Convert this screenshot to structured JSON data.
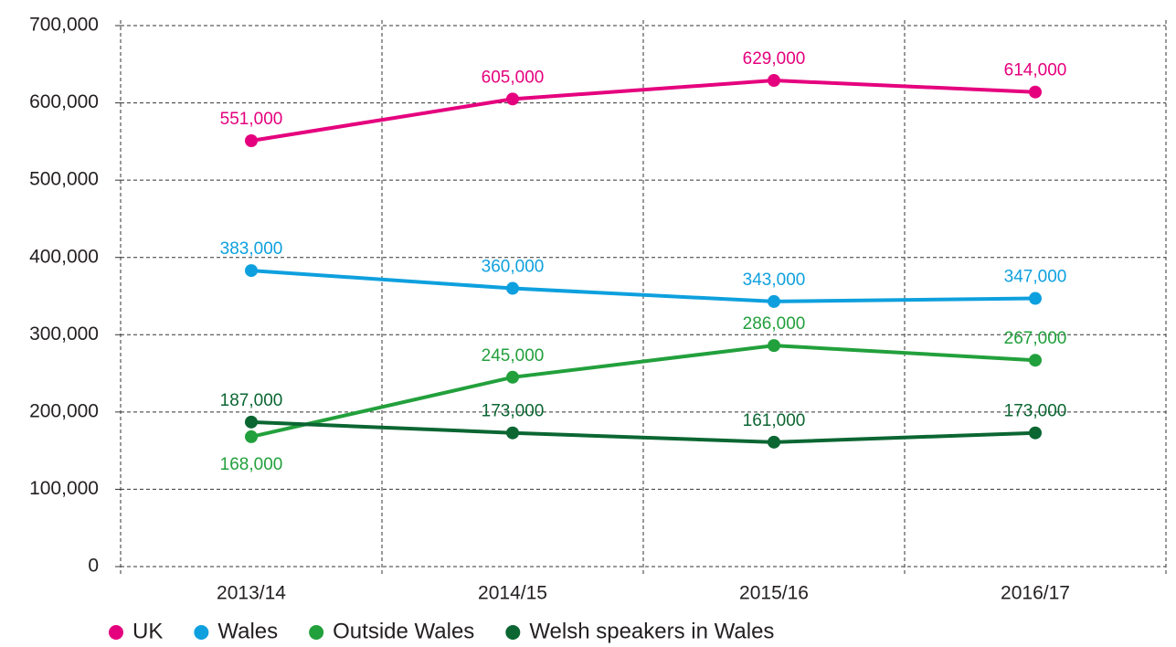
{
  "chart_data": {
    "type": "line",
    "categories": [
      "2013/14",
      "2014/15",
      "2015/16",
      "2016/17"
    ],
    "series": [
      {
        "name": "UK",
        "color": "#e5007e",
        "values": [
          551000,
          605000,
          629000,
          614000
        ],
        "value_labels": [
          "551,000",
          "605,000",
          "629,000",
          "614,000"
        ]
      },
      {
        "name": "Wales",
        "color": "#0ea0de",
        "values": [
          383000,
          360000,
          343000,
          347000
        ],
        "value_labels": [
          "383,000",
          "360,000",
          "343,000",
          "347,000"
        ]
      },
      {
        "name": "Outside Wales",
        "color": "#22a03c",
        "values": [
          168000,
          245000,
          286000,
          267000
        ],
        "value_labels": [
          "168,000",
          "245,000",
          "286,000",
          "267,000"
        ]
      },
      {
        "name": "Welsh speakers in Wales",
        "color": "#0b6632",
        "values": [
          187000,
          173000,
          161000,
          173000
        ],
        "value_labels": [
          "187,000",
          "173,000",
          "161,000",
          "173,000"
        ]
      }
    ],
    "ylim": [
      0,
      700000
    ],
    "yticks": [
      0,
      {
        "value": 100000,
        "label": "100,000"
      },
      {
        "value": 200000,
        "label": "200,000"
      },
      {
        "value": 300000,
        "label": "300,000"
      },
      {
        "value": 400000,
        "label": "400,000"
      },
      {
        "value": 500000,
        "label": "500,000"
      },
      {
        "value": 600000,
        "label": "600,000"
      },
      {
        "value": 700000,
        "label": "700,000"
      }
    ],
    "grid": true,
    "legend": "bottom"
  }
}
